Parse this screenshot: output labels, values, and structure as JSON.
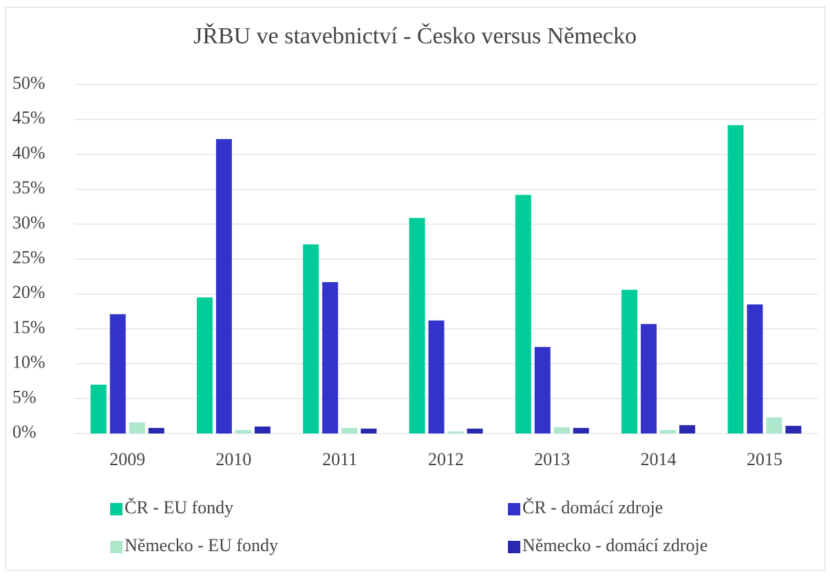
{
  "chart_data": {
    "type": "bar",
    "title": "JŘBU ve stavebnictví - Česko versus Německo",
    "categories": [
      "2009",
      "2010",
      "2011",
      "2012",
      "2013",
      "2014",
      "2015"
    ],
    "series": [
      {
        "name": "ČR - EU fondy",
        "color": "#00cc99",
        "values": [
          7.0,
          19.5,
          27.1,
          30.9,
          34.2,
          20.6,
          44.2
        ]
      },
      {
        "name": "ČR - domácí zdroje",
        "color": "#3333cc",
        "values": [
          17.1,
          42.2,
          21.7,
          16.2,
          12.4,
          15.7,
          18.5
        ]
      },
      {
        "name": "Německo - EU fondy",
        "color": "#aee8cc",
        "values": [
          1.6,
          0.5,
          0.8,
          0.3,
          0.9,
          0.5,
          2.3
        ]
      },
      {
        "name": "Německo - domácí zdroje",
        "color": "#2828b0",
        "values": [
          0.8,
          1.0,
          0.7,
          0.7,
          0.8,
          1.2,
          1.1
        ]
      }
    ],
    "ylim": [
      0,
      50
    ],
    "yticks": [
      {
        "value": 0,
        "label": "0%"
      },
      {
        "value": 5,
        "label": "5%"
      },
      {
        "value": 10,
        "label": "10%"
      },
      {
        "value": 15,
        "label": "15%"
      },
      {
        "value": 20,
        "label": "20%"
      },
      {
        "value": 25,
        "label": "25%"
      },
      {
        "value": 30,
        "label": "30%"
      },
      {
        "value": 35,
        "label": "35%"
      },
      {
        "value": 40,
        "label": "40%"
      },
      {
        "value": 45,
        "label": "45%"
      },
      {
        "value": 50,
        "label": "50%"
      }
    ],
    "grid": true
  }
}
